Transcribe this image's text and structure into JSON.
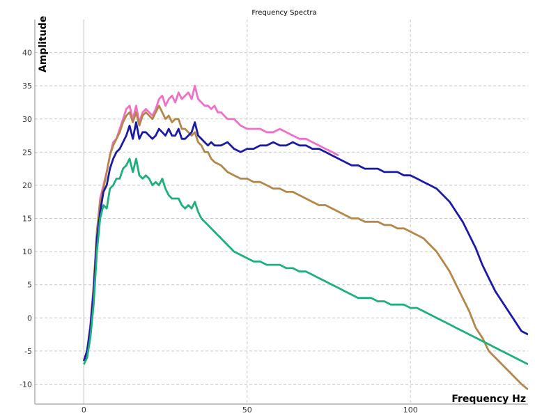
{
  "chart_data": {
    "type": "line",
    "title": "Frequency Spectra",
    "xlabel": "Frequency Hz",
    "ylabel": "Amplitude",
    "xlim": [
      -15,
      136
    ],
    "ylim": [
      -13,
      45
    ],
    "xticks": [
      0,
      50,
      100
    ],
    "yticks": [
      -10,
      -5,
      0,
      5,
      10,
      15,
      20,
      25,
      30,
      35,
      40
    ],
    "grid": true,
    "legend": "none",
    "series": [
      {
        "color": "#f070c8",
        "points": [
          [
            0,
            -6.5
          ],
          [
            1,
            -5
          ],
          [
            2,
            -1
          ],
          [
            3,
            5
          ],
          [
            4,
            13
          ],
          [
            5,
            18
          ],
          [
            6,
            20
          ],
          [
            7,
            22
          ],
          [
            8,
            24.5
          ],
          [
            9,
            26.5
          ],
          [
            10,
            27
          ],
          [
            11,
            28.5
          ],
          [
            12,
            30
          ],
          [
            13,
            31.5
          ],
          [
            14,
            32
          ],
          [
            15,
            30
          ],
          [
            16,
            32
          ],
          [
            17,
            29.5
          ],
          [
            18,
            31
          ],
          [
            19,
            31.5
          ],
          [
            20,
            31
          ],
          [
            21,
            30.5
          ],
          [
            22,
            31.5
          ],
          [
            23,
            33
          ],
          [
            24,
            33.5
          ],
          [
            25,
            32
          ],
          [
            26,
            33
          ],
          [
            27,
            33.5
          ],
          [
            28,
            32.5
          ],
          [
            29,
            34
          ],
          [
            30,
            33
          ],
          [
            31,
            33.5
          ],
          [
            32,
            34
          ],
          [
            33,
            33
          ],
          [
            34,
            35
          ],
          [
            35,
            33
          ],
          [
            36,
            32.5
          ],
          [
            37,
            32
          ],
          [
            38,
            32
          ],
          [
            39,
            31.5
          ],
          [
            40,
            32
          ],
          [
            41,
            31
          ],
          [
            42,
            31
          ],
          [
            43,
            30.5
          ],
          [
            44,
            30
          ],
          [
            45,
            30
          ],
          [
            46,
            30
          ],
          [
            47,
            29.5
          ],
          [
            48,
            29
          ],
          [
            50,
            28.5
          ],
          [
            52,
            28.5
          ],
          [
            54,
            28.5
          ],
          [
            56,
            28
          ],
          [
            58,
            28
          ],
          [
            60,
            28.5
          ],
          [
            62,
            28
          ],
          [
            64,
            27.5
          ],
          [
            66,
            27
          ],
          [
            68,
            27
          ],
          [
            70,
            26.5
          ],
          [
            72,
            26
          ],
          [
            74,
            25.5
          ],
          [
            76,
            25
          ],
          [
            78,
            24.5
          ]
        ]
      },
      {
        "color": "#b5864a",
        "points": [
          [
            0,
            -6.5
          ],
          [
            1,
            -5
          ],
          [
            2,
            -1.5
          ],
          [
            3,
            4.5
          ],
          [
            4,
            13
          ],
          [
            5,
            17.5
          ],
          [
            6,
            19.5
          ],
          [
            7,
            22
          ],
          [
            8,
            24.5
          ],
          [
            9,
            26
          ],
          [
            10,
            27
          ],
          [
            11,
            28
          ],
          [
            12,
            29.5
          ],
          [
            13,
            30.5
          ],
          [
            14,
            31
          ],
          [
            15,
            29.5
          ],
          [
            16,
            31
          ],
          [
            17,
            29
          ],
          [
            18,
            30.5
          ],
          [
            19,
            31
          ],
          [
            20,
            30.5
          ],
          [
            21,
            30
          ],
          [
            22,
            31
          ],
          [
            23,
            32
          ],
          [
            24,
            31
          ],
          [
            25,
            30
          ],
          [
            26,
            30.5
          ],
          [
            27,
            29.5
          ],
          [
            28,
            30
          ],
          [
            29,
            30
          ],
          [
            30,
            28.5
          ],
          [
            31,
            28.5
          ],
          [
            32,
            28
          ],
          [
            33,
            27.5
          ],
          [
            34,
            28
          ],
          [
            35,
            26.5
          ],
          [
            36,
            26
          ],
          [
            37,
            25
          ],
          [
            38,
            25
          ],
          [
            39,
            24
          ],
          [
            40,
            23.5
          ],
          [
            42,
            23
          ],
          [
            44,
            22
          ],
          [
            46,
            21.5
          ],
          [
            48,
            21
          ],
          [
            50,
            21
          ],
          [
            52,
            20.5
          ],
          [
            54,
            20.5
          ],
          [
            56,
            20
          ],
          [
            58,
            19.5
          ],
          [
            60,
            19.5
          ],
          [
            62,
            19
          ],
          [
            64,
            19
          ],
          [
            66,
            18.5
          ],
          [
            68,
            18
          ],
          [
            70,
            17.5
          ],
          [
            72,
            17
          ],
          [
            74,
            17
          ],
          [
            76,
            16.5
          ],
          [
            78,
            16
          ],
          [
            80,
            15.5
          ],
          [
            82,
            15
          ],
          [
            84,
            15
          ],
          [
            86,
            14.5
          ],
          [
            88,
            14.5
          ],
          [
            90,
            14.5
          ],
          [
            92,
            14
          ],
          [
            94,
            14
          ],
          [
            96,
            13.5
          ],
          [
            98,
            13.5
          ],
          [
            100,
            13
          ],
          [
            102,
            12.5
          ],
          [
            104,
            12
          ],
          [
            106,
            11
          ],
          [
            108,
            10
          ],
          [
            110,
            8.5
          ],
          [
            112,
            7
          ],
          [
            114,
            5
          ],
          [
            116,
            3
          ],
          [
            118,
            1
          ],
          [
            120,
            -1.5
          ],
          [
            122,
            -3
          ],
          [
            124,
            -5
          ],
          [
            126,
            -6
          ],
          [
            128,
            -7
          ],
          [
            130,
            -8
          ],
          [
            132,
            -9
          ],
          [
            134,
            -10
          ],
          [
            136,
            -10.8
          ]
        ]
      },
      {
        "color": "#1a1aa8",
        "points": [
          [
            0,
            -6.5
          ],
          [
            1,
            -5
          ],
          [
            2,
            -1.5
          ],
          [
            3,
            4
          ],
          [
            4,
            12
          ],
          [
            5,
            16
          ],
          [
            6,
            19
          ],
          [
            7,
            20
          ],
          [
            8,
            22.5
          ],
          [
            9,
            24
          ],
          [
            10,
            25
          ],
          [
            11,
            25.5
          ],
          [
            12,
            26.5
          ],
          [
            13,
            27.5
          ],
          [
            14,
            29
          ],
          [
            15,
            27
          ],
          [
            16,
            29.5
          ],
          [
            17,
            27
          ],
          [
            18,
            28
          ],
          [
            19,
            28
          ],
          [
            20,
            27.5
          ],
          [
            21,
            27
          ],
          [
            22,
            27.5
          ],
          [
            23,
            28.5
          ],
          [
            24,
            28
          ],
          [
            25,
            27.5
          ],
          [
            26,
            28.5
          ],
          [
            27,
            27.5
          ],
          [
            28,
            27.5
          ],
          [
            29,
            28.5
          ],
          [
            30,
            27
          ],
          [
            31,
            27
          ],
          [
            32,
            27.5
          ],
          [
            33,
            28
          ],
          [
            34,
            29.5
          ],
          [
            35,
            27.5
          ],
          [
            36,
            27
          ],
          [
            37,
            26.5
          ],
          [
            38,
            26
          ],
          [
            39,
            26.5
          ],
          [
            40,
            26
          ],
          [
            42,
            26
          ],
          [
            44,
            26.5
          ],
          [
            46,
            25.5
          ],
          [
            48,
            25
          ],
          [
            50,
            25.5
          ],
          [
            52,
            25.5
          ],
          [
            54,
            26
          ],
          [
            56,
            26
          ],
          [
            58,
            26.5
          ],
          [
            60,
            26
          ],
          [
            62,
            26
          ],
          [
            64,
            26.5
          ],
          [
            66,
            26
          ],
          [
            68,
            26
          ],
          [
            70,
            25.5
          ],
          [
            72,
            25.5
          ],
          [
            74,
            25
          ],
          [
            76,
            24.5
          ],
          [
            78,
            24
          ],
          [
            80,
            23.5
          ],
          [
            82,
            23
          ],
          [
            84,
            23
          ],
          [
            86,
            22.5
          ],
          [
            88,
            22.5
          ],
          [
            90,
            22.5
          ],
          [
            92,
            22
          ],
          [
            94,
            22
          ],
          [
            96,
            22
          ],
          [
            98,
            21.5
          ],
          [
            100,
            21.5
          ],
          [
            102,
            21
          ],
          [
            104,
            20.5
          ],
          [
            106,
            20
          ],
          [
            108,
            19.5
          ],
          [
            110,
            18.5
          ],
          [
            112,
            17.5
          ],
          [
            114,
            16
          ],
          [
            116,
            14.5
          ],
          [
            118,
            12.5
          ],
          [
            120,
            10.5
          ],
          [
            122,
            8
          ],
          [
            124,
            6
          ],
          [
            126,
            4
          ],
          [
            128,
            2.5
          ],
          [
            130,
            1
          ],
          [
            132,
            -0.5
          ],
          [
            134,
            -2
          ],
          [
            136,
            -2.5
          ]
        ]
      },
      {
        "color": "#1db07a",
        "points": [
          [
            0,
            -7
          ],
          [
            1,
            -6
          ],
          [
            2,
            -3
          ],
          [
            3,
            2
          ],
          [
            4,
            10
          ],
          [
            5,
            15
          ],
          [
            6,
            17
          ],
          [
            7,
            16.5
          ],
          [
            8,
            19.5
          ],
          [
            9,
            20
          ],
          [
            10,
            21
          ],
          [
            11,
            21
          ],
          [
            12,
            22.5
          ],
          [
            13,
            23
          ],
          [
            14,
            24
          ],
          [
            15,
            22
          ],
          [
            16,
            24
          ],
          [
            17,
            21.5
          ],
          [
            18,
            21
          ],
          [
            19,
            21.5
          ],
          [
            20,
            21
          ],
          [
            21,
            20
          ],
          [
            22,
            20.5
          ],
          [
            23,
            20
          ],
          [
            24,
            21
          ],
          [
            25,
            19.5
          ],
          [
            26,
            18.5
          ],
          [
            27,
            18
          ],
          [
            28,
            18
          ],
          [
            29,
            18
          ],
          [
            30,
            17
          ],
          [
            31,
            16.5
          ],
          [
            32,
            17
          ],
          [
            33,
            16.5
          ],
          [
            34,
            17.5
          ],
          [
            35,
            16
          ],
          [
            36,
            15
          ],
          [
            37,
            14.5
          ],
          [
            38,
            14
          ],
          [
            39,
            13.5
          ],
          [
            40,
            13
          ],
          [
            42,
            12
          ],
          [
            44,
            11
          ],
          [
            46,
            10
          ],
          [
            48,
            9.5
          ],
          [
            50,
            9
          ],
          [
            52,
            8.5
          ],
          [
            54,
            8.5
          ],
          [
            56,
            8
          ],
          [
            58,
            8
          ],
          [
            60,
            8
          ],
          [
            62,
            7.5
          ],
          [
            64,
            7.5
          ],
          [
            66,
            7
          ],
          [
            68,
            7
          ],
          [
            70,
            6.5
          ],
          [
            72,
            6
          ],
          [
            74,
            5.5
          ],
          [
            76,
            5
          ],
          [
            78,
            4.5
          ],
          [
            80,
            4
          ],
          [
            82,
            3.5
          ],
          [
            84,
            3
          ],
          [
            86,
            3
          ],
          [
            88,
            3
          ],
          [
            90,
            2.5
          ],
          [
            92,
            2.5
          ],
          [
            94,
            2
          ],
          [
            96,
            2
          ],
          [
            98,
            2
          ],
          [
            100,
            1.5
          ],
          [
            102,
            1.5
          ],
          [
            104,
            1
          ],
          [
            106,
            0.5
          ],
          [
            108,
            0
          ],
          [
            110,
            -0.5
          ],
          [
            112,
            -1
          ],
          [
            114,
            -1.5
          ],
          [
            116,
            -2
          ],
          [
            118,
            -2.5
          ],
          [
            120,
            -3
          ],
          [
            122,
            -3.5
          ],
          [
            124,
            -4
          ],
          [
            126,
            -4.5
          ],
          [
            128,
            -5
          ],
          [
            130,
            -5.5
          ],
          [
            132,
            -6
          ],
          [
            134,
            -6.5
          ],
          [
            136,
            -7
          ]
        ]
      }
    ]
  }
}
